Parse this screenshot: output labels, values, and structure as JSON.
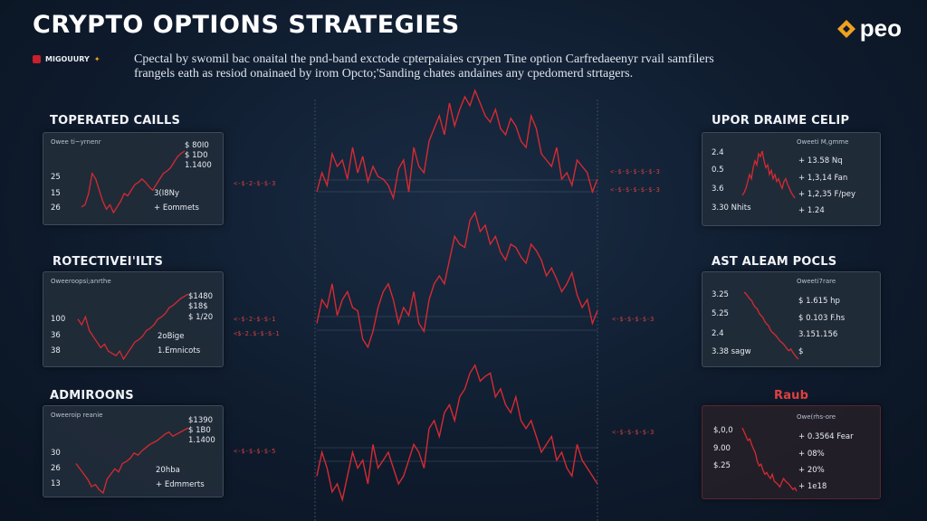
{
  "header": {
    "title": "CRYPTO OPTIONS  STRATEGIES",
    "logo_text": "peo",
    "tag_label": "MIGOUURY",
    "description_line1": "Cpectal by swomil bac onaital the pnd-band exctode cpterpaiaies crypen Tine option Carfredaeenyr rvail samfilers",
    "description_line2": "frangels eath as resiod onainaed by irom Opcto;'Sanding chates andaines any cpedomerd strtagers."
  },
  "colors": {
    "background": "#0f1c2e",
    "accent_red": "#d62a32",
    "logo_orange": "#f0a020",
    "panel_bg": "#222c3a"
  },
  "sections": [
    {
      "title": "TOPERATED CAILLS",
      "style": "white",
      "panel": {
        "head": "Owee ti~yrnenr",
        "labels_left": [
          "25",
          "15",
          "26"
        ],
        "labels_right": [
          "$ 80I0",
          "$ 1D0",
          "1.1400",
          "3(I8Ny",
          "+ Eommets"
        ],
        "spark_data": [
          60,
          58,
          48,
          30,
          35,
          45,
          55,
          62,
          58,
          65,
          60,
          55,
          48,
          50,
          45,
          40,
          38,
          35,
          38,
          42,
          45,
          40,
          35,
          30,
          28,
          25,
          20,
          15,
          12,
          10
        ],
        "spark_color": "#d62a32"
      }
    },
    {
      "title": "ROTECTIVEI'ILTS",
      "style": "white",
      "panel": {
        "head": "Oweeroopsi;anrthe",
        "labels_left": [
          "100",
          "36",
          "38"
        ],
        "labels_right": [
          "$1480",
          "$18$",
          "$ 1/20",
          "2oBige",
          "1.Emnicots"
        ],
        "spark_data": [
          30,
          35,
          28,
          40,
          45,
          50,
          55,
          52,
          58,
          60,
          62,
          58,
          65,
          60,
          55,
          50,
          48,
          45,
          40,
          38,
          35,
          30,
          28,
          25,
          20,
          18,
          15,
          12,
          10,
          8
        ],
        "spark_color": "#d62a32"
      }
    },
    {
      "title": "ADMIROONS",
      "style": "white",
      "panel": {
        "head": "Oweeroip reanie",
        "labels_left": [
          "30",
          "26",
          "13"
        ],
        "labels_right": [
          "$1390",
          "$ 1B0",
          "1.1400",
          "20hba",
          "+ Edmmerts"
        ],
        "spark_data": [
          40,
          45,
          50,
          55,
          62,
          60,
          65,
          68,
          55,
          50,
          45,
          48,
          40,
          38,
          35,
          30,
          32,
          28,
          25,
          22,
          20,
          18,
          15,
          12,
          10,
          14,
          12,
          10,
          8,
          6
        ],
        "spark_color": "#d62a32"
      }
    },
    {
      "title": "UPOR DRAIME CELIP",
      "style": "white",
      "panel": {
        "head": "Oweeti M,gmme",
        "labels_left": [
          "2.4",
          "0.5",
          "3.6"
        ],
        "labels_right": [
          "+ 13.58 Nq",
          "+ 1,3,14 Fan",
          "+ 1,2,35 F/pey",
          "+ 1.24",
          "3.30 Nhits"
        ],
        "spark_data": [
          50,
          48,
          45,
          40,
          35,
          38,
          30,
          25,
          28,
          20,
          22,
          18,
          25,
          30,
          28,
          35,
          32,
          38,
          35,
          40,
          38,
          42,
          45,
          40,
          38,
          42,
          45,
          48,
          50,
          52
        ],
        "spark_color": "#d62a32"
      }
    },
    {
      "title": "AST ALEAM POCLS",
      "style": "white",
      "panel": {
        "head": "Oweeti7rare",
        "labels_left": [
          "3.25",
          "5.25",
          "2.4"
        ],
        "labels_right": [
          "$ 1.615 hp",
          "$ 0.103 F.hs",
          "3.151.156",
          "$",
          "3.38 sagw"
        ],
        "spark_data": [
          10,
          12,
          15,
          18,
          20,
          25,
          28,
          30,
          35,
          38,
          40,
          45,
          48,
          50,
          55,
          58,
          60,
          62,
          65,
          68,
          70,
          72,
          75,
          78,
          80,
          78,
          82,
          85,
          88,
          90
        ],
        "spark_color": "#d62a32"
      }
    },
    {
      "title": "Raub",
      "style": "red",
      "panel": {
        "head": "Owe(rhs-ore",
        "labels_left": [
          "$,0,0",
          "9.00",
          "$.25"
        ],
        "labels_right": [
          "+ 0.3564 Fear",
          "+ 08%",
          "+ 20%",
          "+ 1e18"
        ],
        "spark_data": [
          15,
          20,
          25,
          30,
          28,
          35,
          40,
          45,
          55,
          60,
          58,
          65,
          70,
          68,
          72,
          75,
          70,
          78,
          80,
          82,
          85,
          80,
          75,
          78,
          80,
          82,
          85,
          88,
          86,
          90
        ],
        "spark_color": "#d62a32"
      }
    }
  ],
  "connectors": {
    "left": [
      "<-$-2-$-$-3",
      "<-$-2-$-$-1",
      "<$-2.$-$-$-1",
      "<-$-$-$-$-5"
    ],
    "right": [
      "<-$-$-$-$-$-3",
      "<-$-$-$-$-$-3",
      "<-$-$-$-$-3",
      "<-$-$-$-$-3"
    ]
  },
  "chart_data": {
    "type": "line",
    "title": "",
    "series": [
      {
        "values": [
          20,
          35,
          25,
          50,
          40,
          45,
          30,
          55,
          35,
          48,
          28,
          40,
          32,
          30,
          25,
          15,
          38,
          45,
          20,
          55,
          40,
          35,
          60,
          70,
          80,
          65,
          90,
          72,
          85,
          95,
          88,
          100,
          90,
          80,
          75,
          85,
          70,
          65,
          78,
          72,
          60,
          55,
          80,
          70,
          50,
          45,
          40,
          55,
          30,
          35,
          25,
          45,
          40,
          35,
          20,
          30
        ]
      },
      {
        "values": [
          30,
          45,
          40,
          55,
          35,
          45,
          50,
          40,
          38,
          20,
          15,
          25,
          40,
          50,
          55,
          45,
          30,
          40,
          35,
          50,
          30,
          25,
          45,
          55,
          60,
          55,
          70,
          85,
          80,
          78,
          95,
          100,
          88,
          92,
          80,
          85,
          75,
          70,
          80,
          78,
          72,
          68,
          80,
          76,
          70,
          60,
          65,
          58,
          50,
          55,
          62,
          48,
          40,
          45,
          30,
          38
        ]
      },
      {
        "values": [
          25,
          40,
          30,
          15,
          20,
          10,
          25,
          40,
          30,
          35,
          20,
          45,
          30,
          35,
          40,
          30,
          20,
          25,
          35,
          45,
          40,
          30,
          55,
          60,
          50,
          65,
          70,
          60,
          75,
          80,
          90,
          95,
          85,
          88,
          90,
          75,
          80,
          70,
          65,
          75,
          60,
          55,
          60,
          50,
          40,
          45,
          50,
          35,
          40,
          30,
          25,
          45,
          35,
          30,
          25,
          20
        ]
      }
    ],
    "grid": true
  }
}
